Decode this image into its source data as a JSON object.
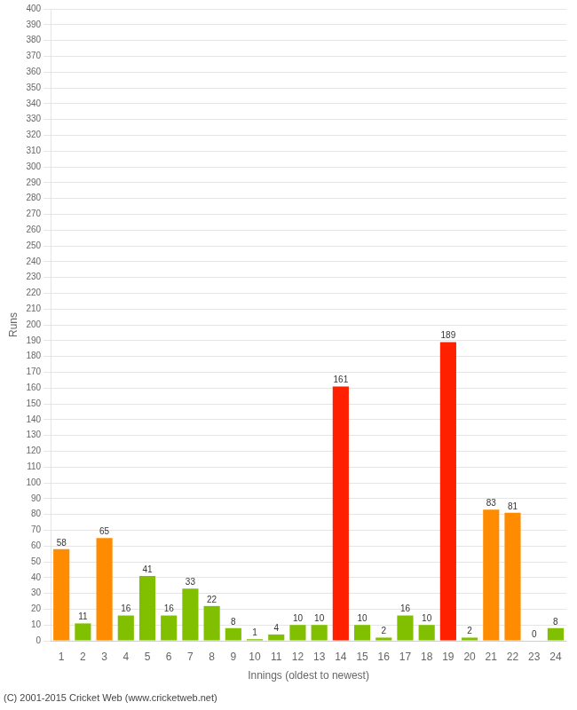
{
  "chart_data": {
    "type": "bar",
    "xlabel": "Innings (oldest to newest)",
    "ylabel": "Runs",
    "categories": [
      1,
      2,
      3,
      4,
      5,
      6,
      7,
      8,
      9,
      10,
      11,
      12,
      13,
      14,
      15,
      16,
      17,
      18,
      19,
      20,
      21,
      22,
      23,
      24
    ],
    "values": [
      58,
      11,
      65,
      16,
      41,
      16,
      33,
      22,
      8,
      1,
      4,
      10,
      10,
      161,
      10,
      2,
      16,
      10,
      189,
      2,
      83,
      81,
      0,
      8
    ],
    "colors": [
      "#ff8c00",
      "#80c000",
      "#ff8c00",
      "#80c000",
      "#80c000",
      "#80c000",
      "#80c000",
      "#80c000",
      "#80c000",
      "#80c000",
      "#80c000",
      "#80c000",
      "#80c000",
      "#ff2000",
      "#80c000",
      "#80c000",
      "#80c000",
      "#80c000",
      "#ff2000",
      "#80c000",
      "#ff8c00",
      "#ff8c00",
      "#80c000",
      "#80c000"
    ],
    "ylim": [
      0,
      400
    ],
    "yticks": [
      0,
      10,
      20,
      30,
      40,
      50,
      60,
      70,
      80,
      90,
      100,
      110,
      120,
      130,
      140,
      150,
      160,
      170,
      180,
      190,
      200,
      210,
      220,
      230,
      240,
      250,
      260,
      270,
      280,
      290,
      300,
      310,
      320,
      330,
      340,
      350,
      360,
      370,
      380,
      390,
      400
    ],
    "grid": true,
    "data_labels": true,
    "footer": "(C) 2001-2015 Cricket Web (www.cricketweb.net)"
  }
}
